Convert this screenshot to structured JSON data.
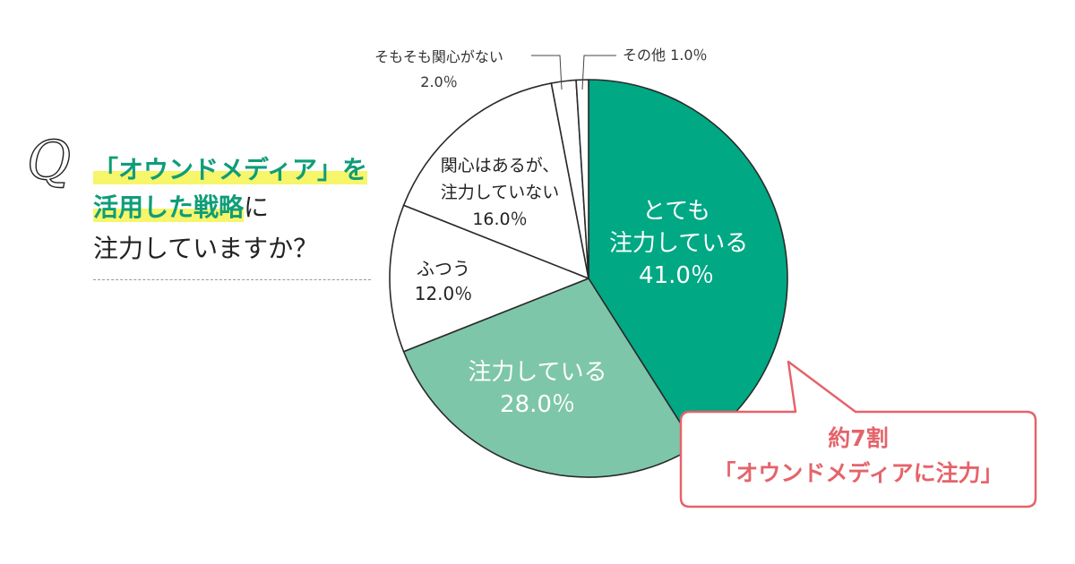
{
  "question": {
    "q_mark": "Q",
    "line1": "「オウンドメディア」を",
    "line2_highlight": "活用した戦略",
    "line2_rest": "に",
    "line3": "注力していますか？"
  },
  "chart_data": {
    "type": "pie",
    "start_angle_deg": 0,
    "direction": "clockwise",
    "slices": [
      {
        "label_lines": [
          "とても",
          "注力している"
        ],
        "value": 41.0,
        "value_label": "41.0％",
        "color": "#00a884"
      },
      {
        "label_lines": [
          "注力している"
        ],
        "value": 28.0,
        "value_label": "28.0％",
        "color": "#7ec6aa"
      },
      {
        "label_lines": [
          "ふつう"
        ],
        "value": 12.0,
        "value_label": "12.0％",
        "color": "#ffffff"
      },
      {
        "label_lines": [
          "関心はあるが、",
          "注力していない"
        ],
        "value": 16.0,
        "value_label": "16.0％",
        "color": "#ffffff"
      },
      {
        "label_lines": [
          "そもそも関心がない"
        ],
        "value": 2.0,
        "value_label": "2.0％",
        "color": "#ffffff"
      },
      {
        "label_lines": [
          "その他"
        ],
        "value": 1.0,
        "value_label": "1.0％",
        "color": "#ffffff"
      }
    ]
  },
  "callout": {
    "line1": "約7割",
    "line2": "「オウンドメディアに注力」",
    "border_color": "#e5636b"
  }
}
